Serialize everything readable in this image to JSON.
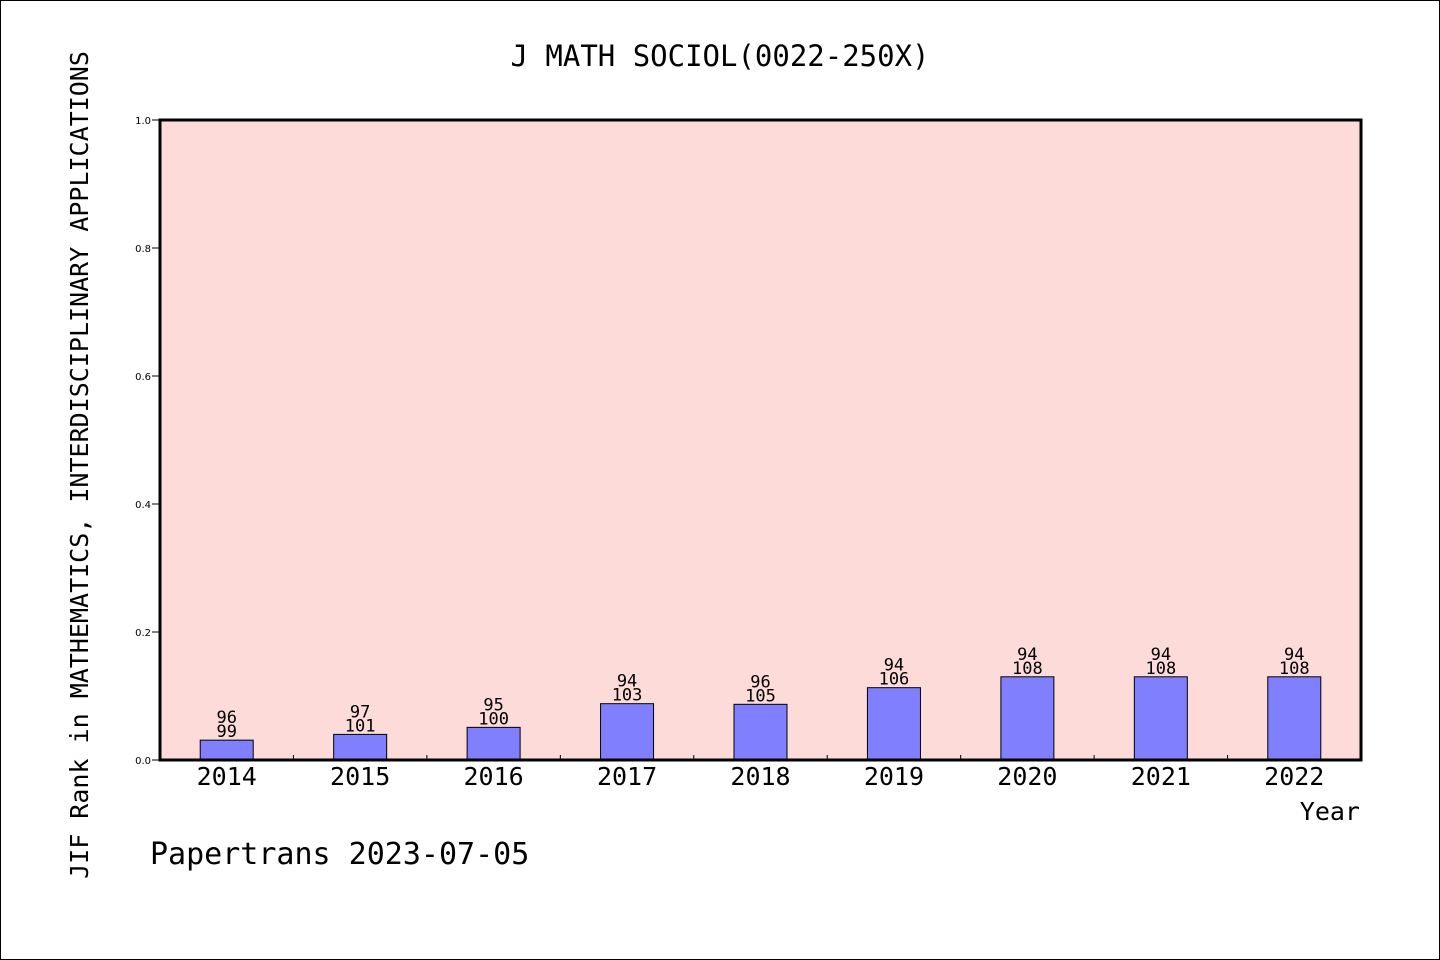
{
  "chart_data": {
    "type": "bar",
    "title": "J MATH SOCIOL(0022-250X)",
    "xlabel": "Year",
    "ylabel": "JIF Rank in MATHEMATICS,  INTERDISCIPLINARY APPLICATIONS",
    "ylim": [
      0,
      1.0
    ],
    "yticks": [
      "0.0",
      "0.2",
      "0.4",
      "0.6",
      "0.8",
      "1.0"
    ],
    "categories": [
      "2014",
      "2015",
      "2016",
      "2017",
      "2018",
      "2019",
      "2020",
      "2021",
      "2022"
    ],
    "values": [
      0.031,
      0.04,
      0.051,
      0.088,
      0.087,
      0.113,
      0.13,
      0.13,
      0.13
    ],
    "rank_labels": [
      "96",
      "97",
      "95",
      "94",
      "96",
      "94",
      "94",
      "94",
      "94"
    ],
    "total_labels": [
      "99",
      "101",
      "100",
      "103",
      "105",
      "106",
      "108",
      "108",
      "108"
    ],
    "colors": {
      "plot_bg": "#fddbd8",
      "bar_fill": "#8080ff",
      "bar_stroke": "#000000"
    }
  },
  "footer": {
    "credit": "Papertrans 2023-07-05"
  }
}
